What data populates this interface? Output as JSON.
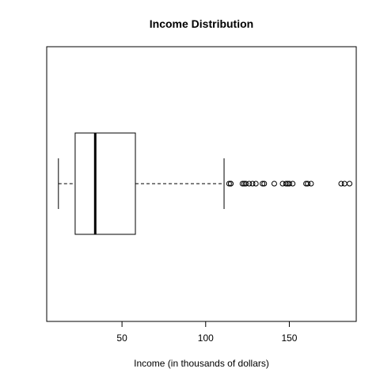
{
  "chart_data": {
    "type": "boxplot",
    "orientation": "horizontal",
    "title": "Income Distribution",
    "xlabel": "Income (in thousands of dollars)",
    "ylabel": "",
    "xlim": [
      5,
      190
    ],
    "xticks": [
      50,
      100,
      150
    ],
    "xtick_labels": [
      "50",
      "100",
      "150"
    ],
    "grid": false,
    "box": {
      "whisker_low": 12,
      "q1": 22,
      "median": 34,
      "q3": 58,
      "whisker_high": 111
    },
    "outliers": [
      114,
      115,
      115,
      122,
      123,
      124,
      126,
      128,
      130,
      134,
      135,
      141,
      146,
      148,
      149,
      150,
      152,
      160,
      161,
      163,
      181,
      183,
      186
    ],
    "colors": {
      "stroke": "#000000",
      "background": "#ffffff"
    }
  }
}
